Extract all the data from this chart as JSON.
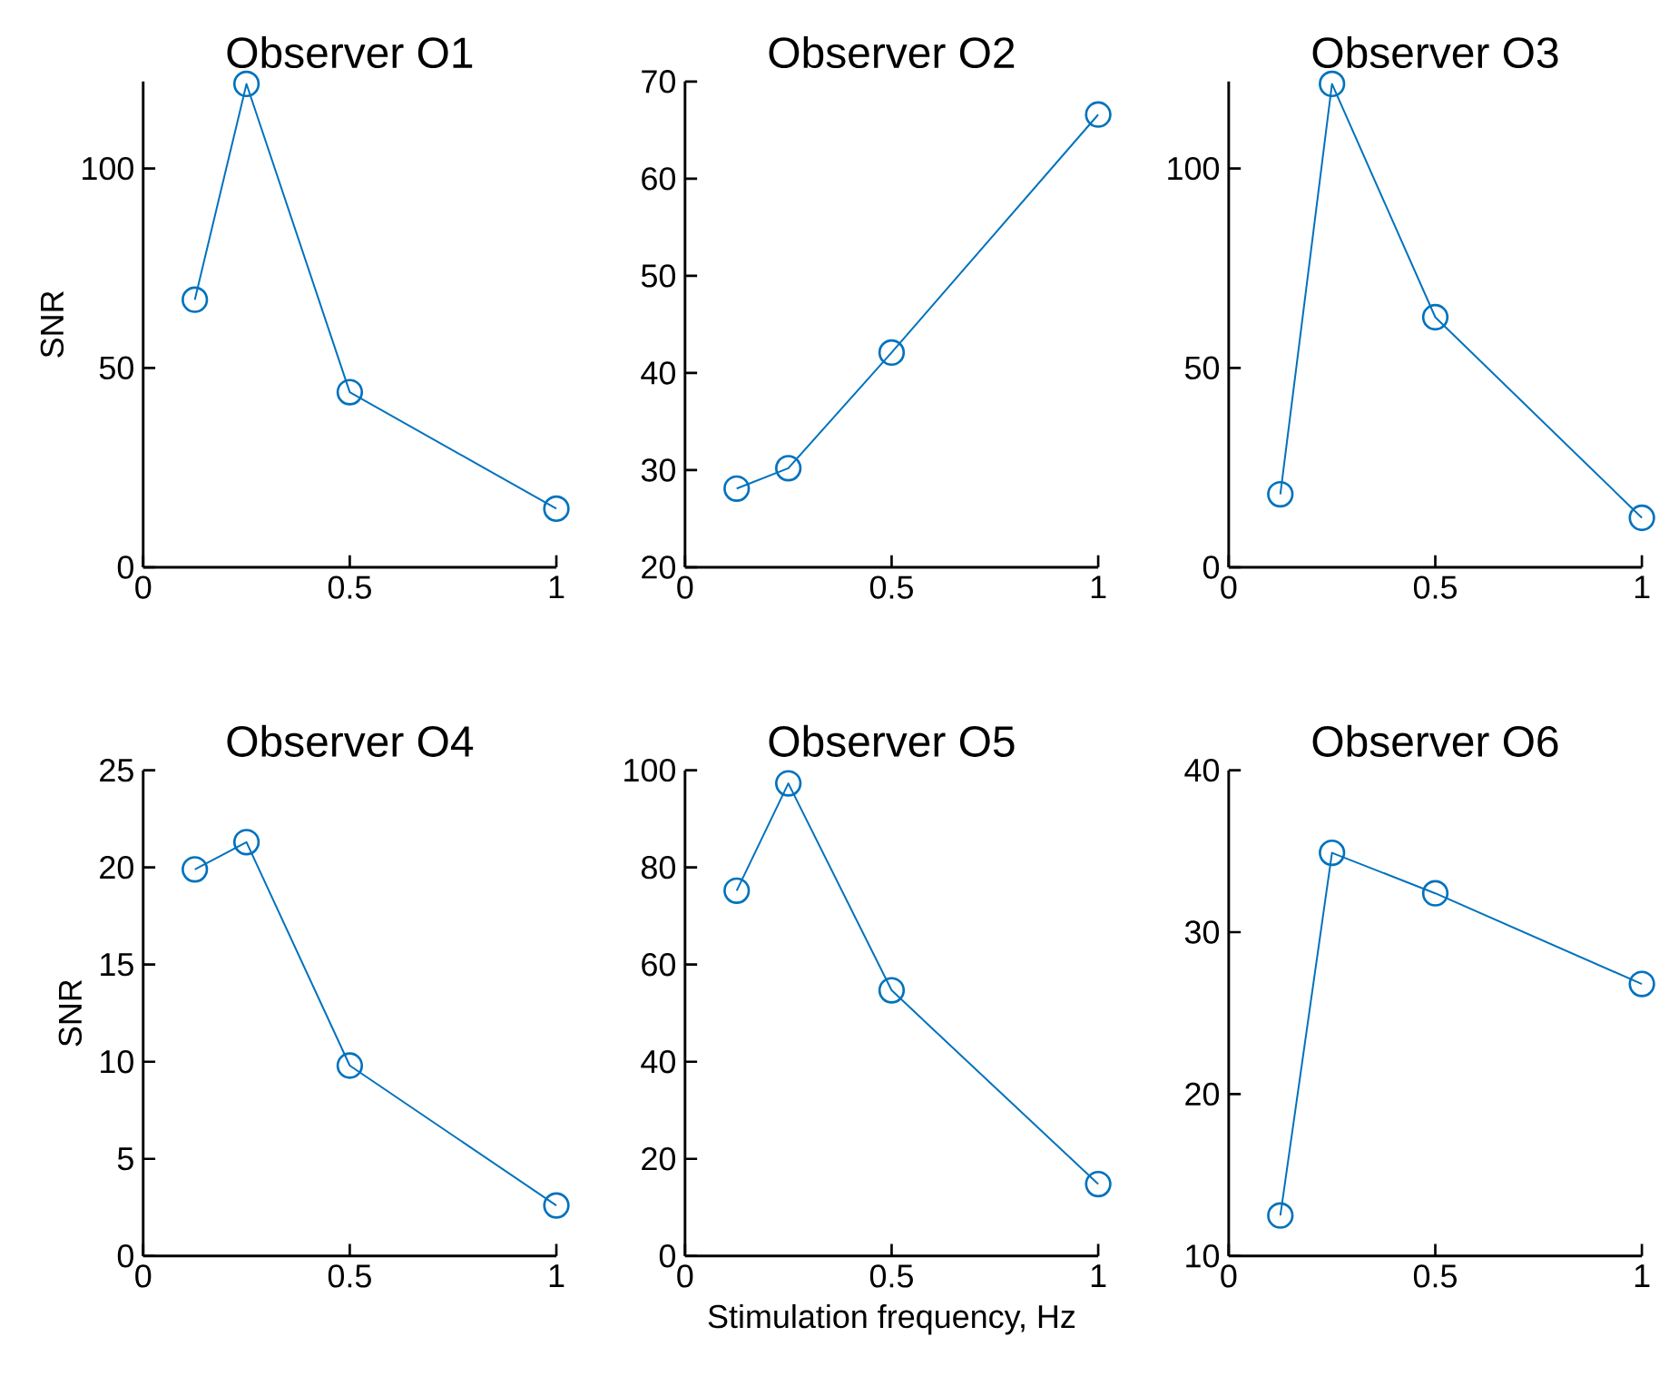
{
  "chart_data": [
    {
      "type": "line",
      "title": "Observer O1",
      "ylabel": "SNR",
      "x": [
        0.125,
        0.25,
        0.5,
        1
      ],
      "values": [
        67.1,
        121.2,
        43.9,
        14.7
      ],
      "color": "#0072bd",
      "marker": "circle",
      "line_style": "solid",
      "xlim": [
        0,
        1
      ],
      "ylim": [
        0,
        121.8
      ],
      "xticks": [
        0,
        0.5,
        1
      ],
      "yticks": [
        0,
        50,
        100
      ]
    },
    {
      "type": "line",
      "title": "Observer O2",
      "x": [
        0.125,
        0.25,
        0.5,
        1
      ],
      "values": [
        28.1,
        30.2,
        42.1,
        66.6
      ],
      "color": "#0072bd",
      "marker": "circle",
      "line_style": "solid",
      "xlim": [
        0,
        1
      ],
      "ylim": [
        20,
        70
      ],
      "xticks": [
        0,
        0.5,
        1
      ],
      "yticks": [
        20,
        30,
        40,
        50,
        60,
        70
      ]
    },
    {
      "type": "line",
      "title": "Observer O3",
      "x": [
        0.125,
        0.25,
        0.5,
        1
      ],
      "values": [
        18.3,
        121.2,
        62.7,
        12.4
      ],
      "color": "#0072bd",
      "marker": "circle",
      "line_style": "solid",
      "xlim": [
        0,
        1
      ],
      "ylim": [
        0,
        121.8
      ],
      "xticks": [
        0,
        0.5,
        1
      ],
      "yticks": [
        0,
        50,
        100
      ]
    },
    {
      "type": "line",
      "title": "Observer O4",
      "ylabel": "SNR",
      "x": [
        0.125,
        0.25,
        0.5,
        1
      ],
      "values": [
        19.9,
        21.3,
        9.8,
        2.6
      ],
      "color": "#0072bd",
      "marker": "circle",
      "line_style": "solid",
      "xlim": [
        0,
        1
      ],
      "ylim": [
        0,
        25
      ],
      "xticks": [
        0,
        0.5,
        1
      ],
      "yticks": [
        0,
        5,
        10,
        15,
        20,
        25
      ]
    },
    {
      "type": "line",
      "title": "Observer O5",
      "xlabel": "Stimulation frequency, Hz",
      "x": [
        0.125,
        0.25,
        0.5,
        1
      ],
      "values": [
        75.2,
        97.3,
        54.7,
        14.8
      ],
      "color": "#0072bd",
      "marker": "circle",
      "line_style": "solid",
      "xlim": [
        0,
        1
      ],
      "ylim": [
        0,
        100
      ],
      "xticks": [
        0,
        0.5,
        1
      ],
      "yticks": [
        0,
        20,
        40,
        60,
        80,
        100
      ]
    },
    {
      "type": "line",
      "title": "Observer O6",
      "x": [
        0.125,
        0.25,
        0.5,
        1
      ],
      "values": [
        12.5,
        34.9,
        32.4,
        26.8
      ],
      "color": "#0072bd",
      "marker": "circle",
      "line_style": "solid",
      "xlim": [
        0,
        1
      ],
      "ylim": [
        10,
        40
      ],
      "xticks": [
        0,
        0.5,
        1
      ],
      "yticks": [
        10,
        20,
        30,
        40
      ]
    }
  ]
}
